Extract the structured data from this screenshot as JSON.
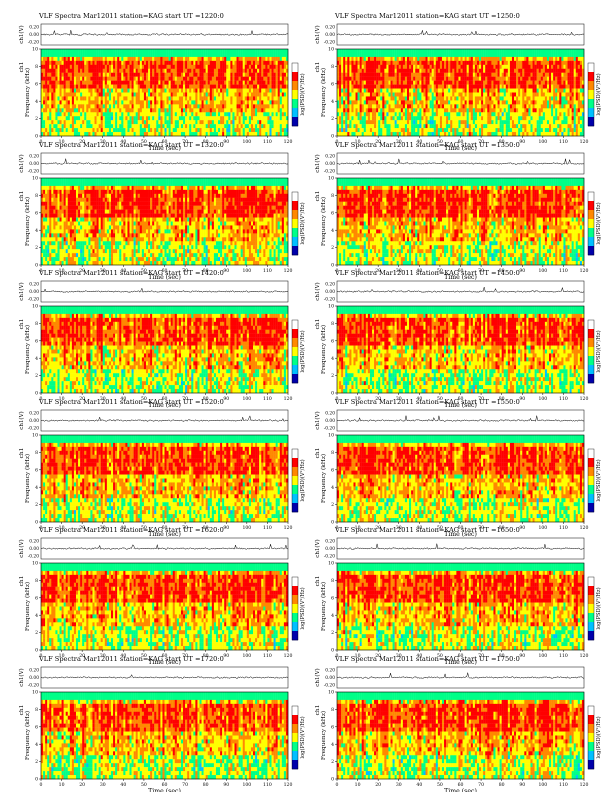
{
  "page": {
    "title_prefix": "VLF Spectra",
    "date": "Mar12011",
    "station": "station=KAG",
    "start_label": "start UT"
  },
  "colorbar": {
    "label": "log(PSD)(V²/Hz)",
    "colors": [
      "#0000aa",
      "#00bfff",
      "#00ff88",
      "#ffff00",
      "#ff8800",
      "#ff0000",
      "#ffffff"
    ]
  },
  "chart_data": [
    {
      "type": "heatmap",
      "title": "VLF Spectra   Mar12011   station=KAG   start UT =1220:0",
      "start_ut": "1220:0",
      "xlabel": "Time (sec)",
      "ylabel": "Frequency (kHz)",
      "ylabel_top": "ch1",
      "ch_label": "ch1(V)",
      "xlim": [
        0,
        120
      ],
      "ylim": [
        0,
        10
      ],
      "xticks": [
        0,
        10,
        20,
        30,
        40,
        50,
        60,
        70,
        80,
        90,
        100,
        110,
        120
      ],
      "yticks": [
        0,
        2,
        4,
        6,
        8,
        10
      ],
      "ch_ticks": [
        "0.20",
        "0.00",
        "-0.20"
      ]
    },
    {
      "type": "heatmap",
      "title": "VLF Spectra   Mar12011   station=KAG   start UT =1250:0",
      "start_ut": "1250:0",
      "xlabel": "Time (sec)",
      "ylabel": "Frequency (kHz)",
      "ylabel_top": "ch1",
      "ch_label": "ch1(V)",
      "xlim": [
        0,
        120
      ],
      "ylim": [
        0,
        10
      ],
      "xticks": [
        0,
        10,
        20,
        30,
        40,
        50,
        60,
        70,
        80,
        90,
        100,
        110,
        120
      ],
      "yticks": [
        0,
        2,
        4,
        6,
        8,
        10
      ],
      "ch_ticks": [
        "0.20",
        "0.00",
        "-0.20"
      ]
    },
    {
      "type": "heatmap",
      "title": "VLF Spectra   Mar12011   station=KAG   start UT =1320:0",
      "start_ut": "1320:0",
      "xlabel": "Time (sec)",
      "ylabel": "Frequency (kHz)",
      "ylabel_top": "ch1",
      "ch_label": "ch1(V)",
      "xlim": [
        0,
        120
      ],
      "ylim": [
        0,
        10
      ],
      "xticks": [
        0,
        10,
        20,
        30,
        40,
        50,
        60,
        70,
        80,
        90,
        100,
        110,
        120
      ],
      "yticks": [
        0,
        2,
        4,
        6,
        8,
        10
      ],
      "ch_ticks": [
        "0.20",
        "0.00",
        "-0.20"
      ]
    },
    {
      "type": "heatmap",
      "title": "VLF Spectra   Mar12011   station=KAG   start UT =1350:0",
      "start_ut": "1350:0",
      "xlabel": "Time (sec)",
      "ylabel": "Frequency (kHz)",
      "ylabel_top": "ch1",
      "ch_label": "ch1(V)",
      "xlim": [
        0,
        120
      ],
      "ylim": [
        0,
        10
      ],
      "xticks": [
        0,
        10,
        20,
        30,
        40,
        50,
        60,
        70,
        80,
        90,
        100,
        110,
        120
      ],
      "yticks": [
        0,
        2,
        4,
        6,
        8,
        10
      ],
      "ch_ticks": [
        "0.20",
        "0.00",
        "-0.20"
      ]
    },
    {
      "type": "heatmap",
      "title": "VLF Spectra   Mar12011   station=KAG   start UT =1420:0",
      "start_ut": "1420:0",
      "xlabel": "Time (sec)",
      "ylabel": "Frequency (kHz)",
      "ylabel_top": "ch1",
      "ch_label": "ch1(V)",
      "xlim": [
        0,
        120
      ],
      "ylim": [
        0,
        10
      ],
      "xticks": [
        0,
        10,
        20,
        30,
        40,
        50,
        60,
        70,
        80,
        90,
        100,
        110,
        120
      ],
      "yticks": [
        0,
        2,
        4,
        6,
        8,
        10
      ],
      "ch_ticks": [
        "0.20",
        "0.00",
        "-0.20"
      ]
    },
    {
      "type": "heatmap",
      "title": "VLF Spectra   Mar12011   station=KAG   start UT =1450:0",
      "start_ut": "1450:0",
      "xlabel": "Time (sec)",
      "ylabel": "Frequency (kHz)",
      "ylabel_top": "ch1",
      "ch_label": "ch1(V)",
      "xlim": [
        0,
        120
      ],
      "ylim": [
        0,
        10
      ],
      "xticks": [
        0,
        10,
        20,
        30,
        40,
        50,
        60,
        70,
        80,
        90,
        100,
        110,
        120
      ],
      "yticks": [
        0,
        2,
        4,
        6,
        8,
        10
      ],
      "ch_ticks": [
        "0.20",
        "0.00",
        "-0.20"
      ]
    },
    {
      "type": "heatmap",
      "title": "VLF Spectra   Mar12011   station=KAG   start UT =1520:0",
      "start_ut": "1520:0",
      "xlabel": "Time (sec)",
      "ylabel": "Frequency (kHz)",
      "ylabel_top": "ch1",
      "ch_label": "ch1(V)",
      "xlim": [
        0,
        120
      ],
      "ylim": [
        0,
        10
      ],
      "xticks": [
        0,
        10,
        20,
        30,
        40,
        50,
        60,
        70,
        80,
        90,
        100,
        110,
        120
      ],
      "yticks": [
        0,
        2,
        4,
        6,
        8,
        10
      ],
      "ch_ticks": [
        "0.20",
        "0.00",
        "-0.20"
      ]
    },
    {
      "type": "heatmap",
      "title": "VLF Spectra   Mar12011   station=KAG   start UT =1550:0",
      "start_ut": "1550:0",
      "xlabel": "Time (sec)",
      "ylabel": "Frequency (kHz)",
      "ylabel_top": "ch1",
      "ch_label": "ch1(V)",
      "xlim": [
        0,
        120
      ],
      "ylim": [
        0,
        10
      ],
      "xticks": [
        0,
        10,
        20,
        30,
        40,
        50,
        60,
        70,
        80,
        90,
        100,
        110,
        120
      ],
      "yticks": [
        0,
        2,
        4,
        6,
        8,
        10
      ],
      "ch_ticks": [
        "0.20",
        "0.00",
        "-0.20"
      ]
    },
    {
      "type": "heatmap",
      "title": "VLF Spectra   Mar12011   station=KAG   start UT =1620:0",
      "start_ut": "1620:0",
      "xlabel": "Time (sec)",
      "ylabel": "Frequency (kHz)",
      "ylabel_top": "ch1",
      "ch_label": "ch1(V)",
      "xlim": [
        0,
        120
      ],
      "ylim": [
        0,
        10
      ],
      "xticks": [
        0,
        10,
        20,
        30,
        40,
        50,
        60,
        70,
        80,
        90,
        100,
        110,
        120
      ],
      "yticks": [
        0,
        2,
        4,
        6,
        8,
        10
      ],
      "ch_ticks": [
        "0.20",
        "0.00",
        "-0.20"
      ]
    },
    {
      "type": "heatmap",
      "title": "VLF Spectra   Mar12011   station=KAG   start UT =1650:0",
      "start_ut": "1650:0",
      "xlabel": "Time (sec)",
      "ylabel": "Frequency (kHz)",
      "ylabel_top": "ch1",
      "ch_label": "ch1(V)",
      "xlim": [
        0,
        120
      ],
      "ylim": [
        0,
        10
      ],
      "xticks": [
        0,
        10,
        20,
        30,
        40,
        50,
        60,
        70,
        80,
        90,
        100,
        110,
        120
      ],
      "yticks": [
        0,
        2,
        4,
        6,
        8,
        10
      ],
      "ch_ticks": [
        "0.20",
        "0.00",
        "-0.20"
      ]
    },
    {
      "type": "heatmap",
      "title": "VLF Spectra   Mar12011   station=KAG   start UT =1720:0",
      "start_ut": "1720:0",
      "xlabel": "Time (sec)",
      "ylabel": "Frequency (kHz)",
      "ylabel_top": "ch1",
      "ch_label": "ch1(V)",
      "xlim": [
        0,
        120
      ],
      "ylim": [
        0,
        10
      ],
      "xticks": [
        0,
        10,
        20,
        30,
        40,
        50,
        60,
        70,
        80,
        90,
        100,
        110,
        120
      ],
      "yticks": [
        0,
        2,
        4,
        6,
        8,
        10
      ],
      "ch_ticks": [
        "0.20",
        "0.00",
        "-0.20"
      ]
    },
    {
      "type": "heatmap",
      "title": "VLF Spectra   Mar12011   station=KAG   start UT =1750:0",
      "start_ut": "1750:0",
      "xlabel": "Time (sec)",
      "ylabel": "Frequency (kHz)",
      "ylabel_top": "ch1",
      "ch_label": "ch1(V)",
      "xlim": [
        0,
        120
      ],
      "ylim": [
        0,
        10
      ],
      "xticks": [
        0,
        10,
        20,
        30,
        40,
        50,
        60,
        70,
        80,
        90,
        100,
        110,
        120
      ],
      "yticks": [
        0,
        2,
        4,
        6,
        8,
        10
      ],
      "ch_ticks": [
        "0.20",
        "0.00",
        "-0.20"
      ]
    }
  ]
}
